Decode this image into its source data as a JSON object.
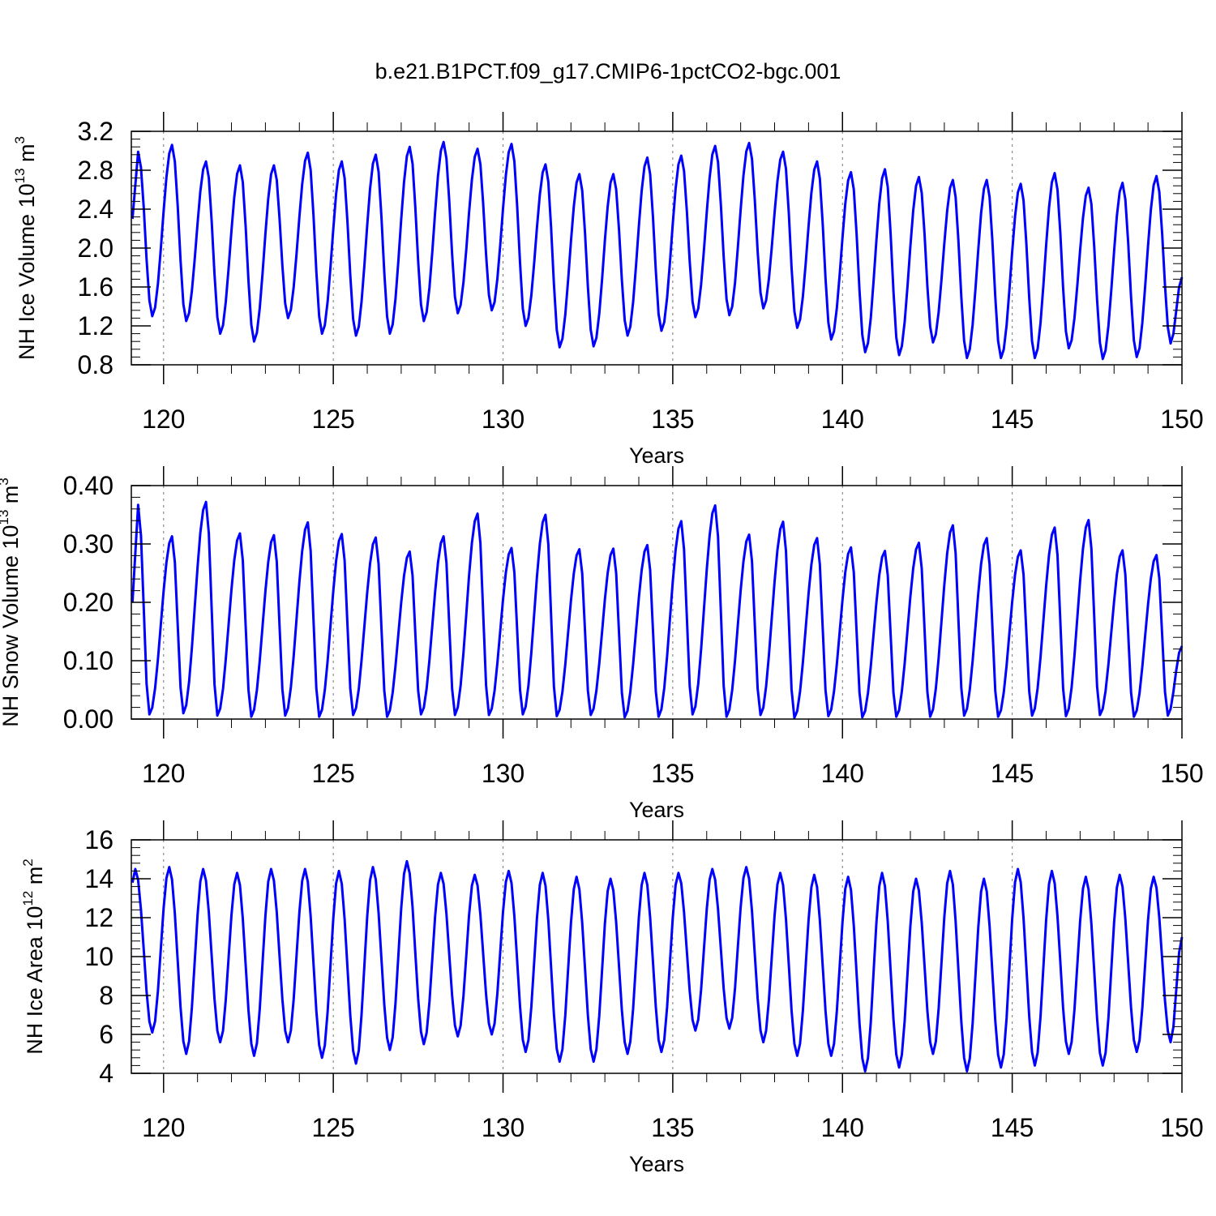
{
  "title": "b.e21.B1PCT.f09_g17.CMIP6-1pctCO2-bgc.001",
  "style": {
    "line_color": "#0000ff",
    "axis_color": "#000000",
    "grid_color": "#777777"
  },
  "chart_data": [
    {
      "type": "line",
      "name": "ice-volume",
      "ylabel": "NH Ice Volume 10",
      "ylabel_sup1": "13",
      "ylabel_mid": " m",
      "ylabel_sup2": "3",
      "xlabel": "Years",
      "xlim": [
        119.05,
        150.0
      ],
      "ylim": [
        0.8,
        3.2
      ],
      "xticks": [
        120,
        125,
        130,
        135,
        140,
        145,
        150
      ],
      "xtick_labels": [
        "120",
        "125",
        "130",
        "135",
        "140",
        "145",
        "150"
      ],
      "yticks": [
        0.8,
        1.2,
        1.6,
        2.0,
        2.4,
        2.8,
        3.2
      ],
      "ytick_labels": [
        "0.8",
        "1.2",
        "1.6",
        "2.0",
        "2.4",
        "2.8",
        "3.2"
      ],
      "vgrid": [
        120,
        125,
        130,
        135,
        140,
        145
      ],
      "start": 119.05,
      "end": 150.0,
      "series": [
        {
          "start_value": 2.3,
          "end_value": 1.7,
          "peak_month": 3,
          "min_month": 8,
          "peaks": [
            2.99,
            3.06,
            2.89,
            2.85,
            2.85,
            2.98,
            2.89,
            2.96,
            3.04,
            3.09,
            3.02,
            3.07,
            2.86,
            2.76,
            2.76,
            2.93,
            2.95,
            3.05,
            3.08,
            2.99,
            2.89,
            2.78,
            2.81,
            2.73,
            2.7,
            2.7,
            2.66,
            2.77,
            2.62,
            2.67,
            2.74
          ],
          "mins": [
            1.3,
            1.25,
            1.12,
            1.04,
            1.28,
            1.12,
            1.1,
            1.12,
            1.25,
            1.33,
            1.36,
            1.2,
            0.98,
            0.99,
            1.1,
            1.15,
            1.29,
            1.31,
            1.38,
            1.18,
            1.06,
            0.93,
            0.9,
            1.03,
            0.87,
            0.87,
            0.87,
            0.97,
            0.86,
            0.88,
            1.02
          ]
        }
      ]
    },
    {
      "type": "line",
      "name": "snow-volume",
      "ylabel": "NH Snow Volume 10",
      "ylabel_sup1": "13",
      "ylabel_mid": " m",
      "ylabel_sup2": "3",
      "xlabel": "Years",
      "xlim": [
        119.05,
        150.0
      ],
      "ylim": [
        0.0,
        0.4
      ],
      "xticks": [
        120,
        125,
        130,
        135,
        140,
        145,
        150
      ],
      "xtick_labels": [
        "120",
        "125",
        "130",
        "135",
        "140",
        "145",
        "150"
      ],
      "yticks": [
        0.0,
        0.1,
        0.2,
        0.3,
        0.4
      ],
      "ytick_labels": [
        "0.00",
        "0.10",
        "0.20",
        "0.30",
        "0.40"
      ],
      "vgrid": [
        120,
        125,
        130,
        135,
        140,
        145
      ],
      "start": 119.05,
      "end": 150.0,
      "series": [
        {
          "start_value": 0.2,
          "end_value": 0.125,
          "peak_month": 3,
          "min_month": 7,
          "peaks": [
            0.367,
            0.313,
            0.372,
            0.318,
            0.315,
            0.337,
            0.317,
            0.311,
            0.287,
            0.313,
            0.352,
            0.293,
            0.35,
            0.291,
            0.292,
            0.298,
            0.339,
            0.366,
            0.316,
            0.338,
            0.31,
            0.294,
            0.288,
            0.302,
            0.332,
            0.31,
            0.289,
            0.328,
            0.341,
            0.289,
            0.281
          ],
          "mins": [
            0.008,
            0.01,
            0.006,
            0.004,
            0.006,
            0.004,
            0.007,
            0.004,
            0.008,
            0.007,
            0.007,
            0.008,
            0.005,
            0.007,
            0.003,
            0.004,
            0.008,
            0.004,
            0.007,
            0.002,
            0.005,
            0.003,
            0.004,
            0.004,
            0.006,
            0.004,
            0.006,
            0.005,
            0.007,
            0.004,
            0.006
          ]
        }
      ]
    },
    {
      "type": "line",
      "name": "ice-area",
      "ylabel": "NH Ice Area 10",
      "ylabel_sup1": "12",
      "ylabel_mid": " m",
      "ylabel_sup2": "2",
      "xlabel": "Years",
      "xlim": [
        119.05,
        150.0
      ],
      "ylim": [
        4,
        16
      ],
      "xticks": [
        120,
        125,
        130,
        135,
        140,
        145,
        150
      ],
      "xtick_labels": [
        "120",
        "125",
        "130",
        "135",
        "140",
        "145",
        "150"
      ],
      "yticks": [
        4,
        6,
        8,
        10,
        12,
        14,
        16
      ],
      "ytick_labels": [
        "4",
        "6",
        "8",
        "10",
        "12",
        "14",
        "16"
      ],
      "vgrid": [
        120,
        125,
        130,
        135,
        140,
        145
      ],
      "start": 119.05,
      "end": 150.0,
      "series": [
        {
          "start_value": 13.8,
          "end_value": 11.0,
          "peak_month": 2,
          "min_month": 8,
          "peaks": [
            14.5,
            14.6,
            14.5,
            14.3,
            14.5,
            14.5,
            14.4,
            14.6,
            14.9,
            14.3,
            14.2,
            14.4,
            14.3,
            14.1,
            14.0,
            14.3,
            14.3,
            14.5,
            14.6,
            14.3,
            14.2,
            14.1,
            14.3,
            14.0,
            14.4,
            14.0,
            14.5,
            14.4,
            14.1,
            14.2,
            14.1
          ],
          "mins": [
            6.1,
            5.0,
            5.6,
            4.9,
            5.6,
            4.8,
            4.5,
            5.2,
            5.5,
            5.9,
            6.0,
            5.1,
            4.6,
            4.6,
            5.0,
            5.1,
            6.2,
            6.3,
            5.6,
            4.9,
            4.9,
            4.1,
            4.3,
            5.0,
            4.1,
            4.3,
            4.4,
            5.0,
            4.4,
            5.1,
            5.6
          ]
        }
      ]
    }
  ]
}
